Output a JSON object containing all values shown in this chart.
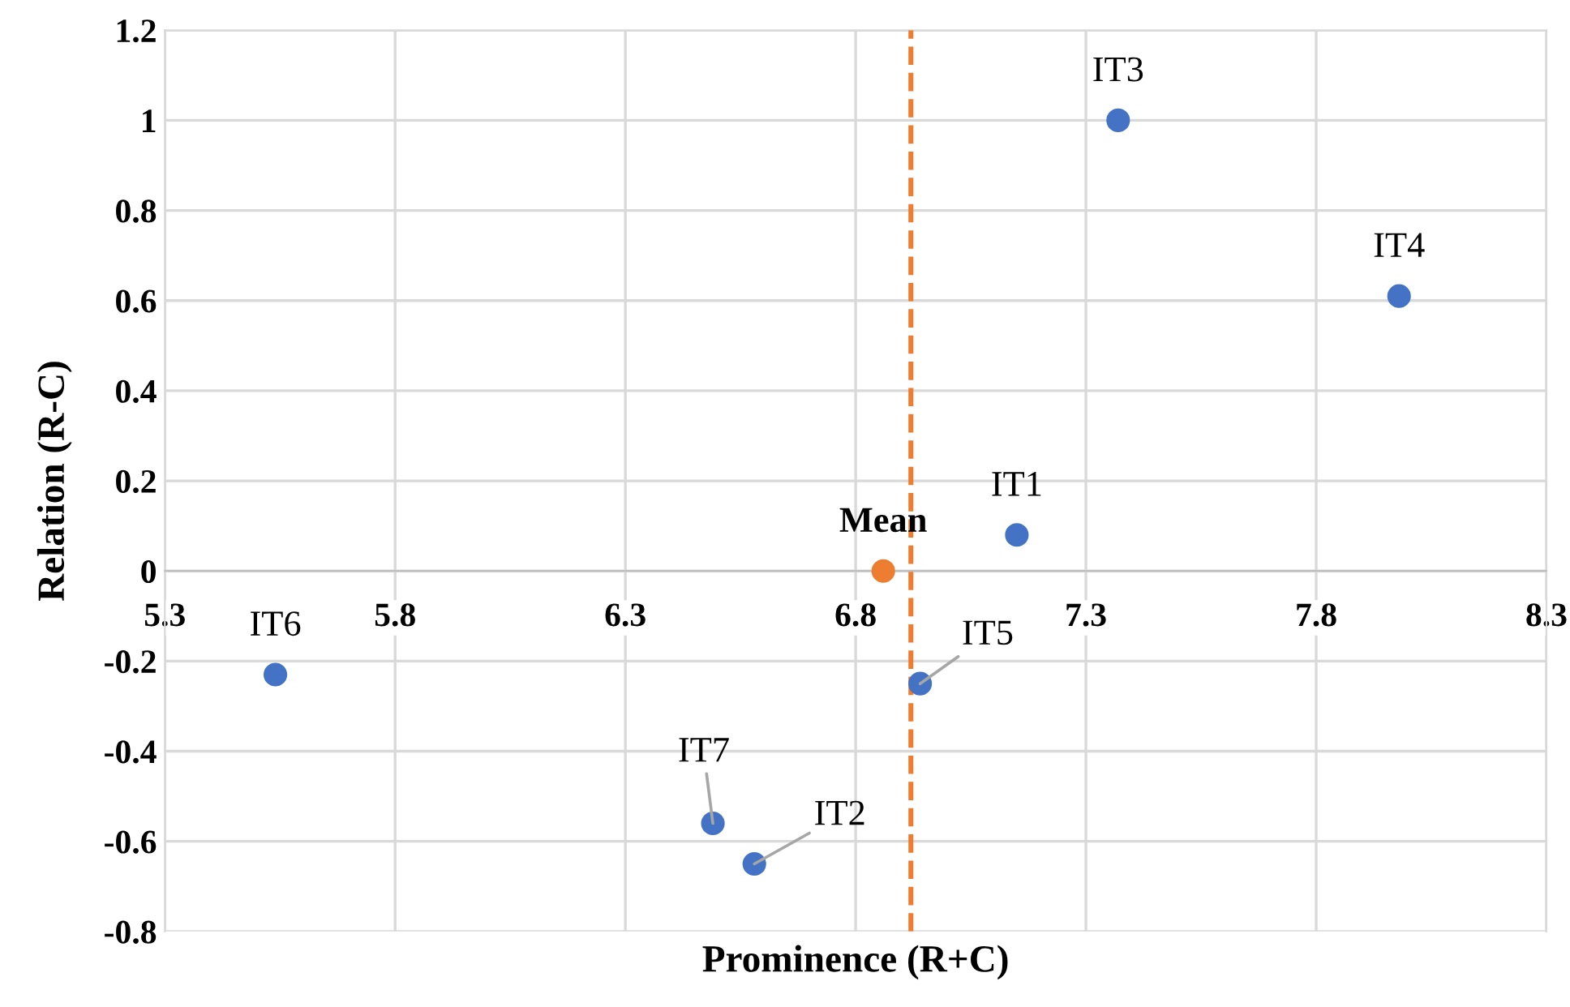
{
  "chart_data": {
    "type": "scatter",
    "xlabel": "Prominence (R+C)",
    "ylabel": "Relation (R-C)",
    "series": [
      {
        "color": "#4472c4",
        "x": [
          7.15,
          6.58,
          7.37,
          7.98,
          6.94,
          5.54,
          6.49
        ],
        "values": [
          0.08,
          -0.65,
          1.0,
          0.61,
          -0.25,
          -0.23,
          -0.56
        ]
      },
      {
        "color": "#ed7d31",
        "x": [
          6.86
        ],
        "values": [
          0
        ]
      }
    ],
    "annotations": [
      {
        "text": "IT1",
        "x": 7.15,
        "y": 0.08
      },
      {
        "text": "IT2",
        "x": 6.58,
        "y": -0.65
      },
      {
        "text": "IT3",
        "x": 7.37,
        "y": 1.0
      },
      {
        "text": "IT4",
        "x": 7.98,
        "y": 0.61
      },
      {
        "text": "IT5",
        "x": 6.94,
        "y": -0.25
      },
      {
        "text": "IT6",
        "x": 5.54,
        "y": -0.23
      },
      {
        "text": "IT7",
        "x": 6.49,
        "y": -0.56
      },
      {
        "text": "Mean",
        "x": 6.86,
        "y": 0
      }
    ],
    "ref_lines": [
      {
        "axis": "x",
        "value": 6.92,
        "color": "#ed7d31",
        "line_style": "dashed"
      }
    ],
    "xlim": [
      5.3,
      8.3
    ],
    "ylim": [
      -0.8,
      1.2
    ],
    "xticks": [
      5.3,
      5.8,
      6.3,
      6.8,
      7.3,
      7.8,
      8.3
    ],
    "yticks": [
      -0.8,
      -0.6,
      -0.4,
      -0.2,
      0,
      0.2,
      0.4,
      0.6,
      0.8,
      1,
      1.2
    ],
    "grid": true,
    "marker": "circle"
  }
}
